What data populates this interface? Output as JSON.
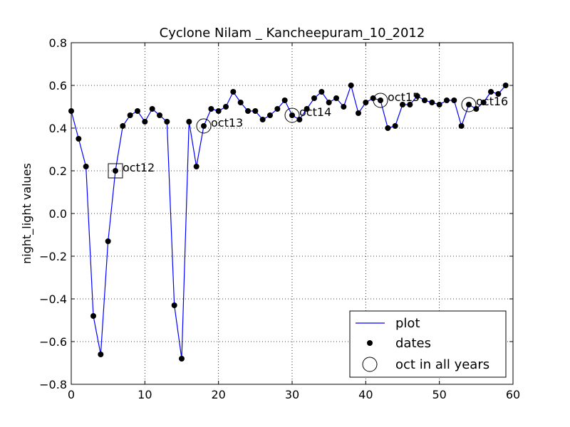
{
  "chart_data": {
    "type": "line",
    "title": "Cyclone Nilam _ Kancheepuram_10_2012",
    "xlabel": "",
    "ylabel": "night_light values",
    "xlim": [
      0,
      60
    ],
    "ylim": [
      -0.8,
      0.8
    ],
    "xticks": [
      0,
      10,
      20,
      30,
      40,
      50,
      60
    ],
    "yticks": [
      -0.8,
      -0.6,
      -0.4,
      -0.2,
      0.0,
      0.2,
      0.4,
      0.6,
      0.8
    ],
    "xtick_labels": [
      "0",
      "10",
      "20",
      "30",
      "40",
      "50",
      "60"
    ],
    "ytick_labels": [
      "−0.8",
      "−0.6",
      "−0.4",
      "−0.2",
      "0.0",
      "0.2",
      "0.4",
      "0.6",
      "0.8"
    ],
    "grid": true,
    "legend_position": "lower-right",
    "series": [
      {
        "name": "plot",
        "style": "line",
        "color": "#0000ff",
        "x": [
          0,
          1,
          2,
          3,
          4,
          5,
          6,
          7,
          8,
          9,
          10,
          11,
          12,
          13,
          14,
          15,
          16,
          17,
          18,
          19,
          20,
          21,
          22,
          23,
          24,
          25,
          26,
          27,
          28,
          29,
          30,
          31,
          32,
          33,
          34,
          35,
          36,
          37,
          38,
          39,
          40,
          41,
          42,
          43,
          44,
          45,
          46,
          47,
          48,
          49,
          50,
          51,
          52,
          53,
          54,
          55,
          56,
          57,
          58,
          59
        ],
        "y": [
          0.48,
          0.35,
          0.22,
          -0.48,
          -0.66,
          -0.13,
          0.2,
          0.41,
          0.46,
          0.48,
          0.43,
          0.49,
          0.46,
          0.43,
          -0.43,
          -0.68,
          0.43,
          0.22,
          0.41,
          0.49,
          0.48,
          0.5,
          0.57,
          0.52,
          0.48,
          0.48,
          0.44,
          0.46,
          0.49,
          0.53,
          0.46,
          0.44,
          0.49,
          0.54,
          0.57,
          0.52,
          0.54,
          0.5,
          0.6,
          0.47,
          0.52,
          0.54,
          0.53,
          0.4,
          0.41,
          0.51,
          0.51,
          0.55,
          0.53,
          0.52,
          0.51,
          0.53,
          0.53,
          0.41,
          0.51,
          0.49,
          0.52,
          0.57,
          0.56,
          0.6
        ]
      },
      {
        "name": "dates",
        "style": "markers",
        "color": "#000000"
      },
      {
        "name": "oct in all years",
        "style": "open-circle-markers",
        "color": "#000000",
        "x": [
          6,
          18,
          30,
          42,
          54
        ],
        "y": [
          0.2,
          0.41,
          0.46,
          0.53,
          0.51
        ]
      }
    ],
    "annotations": [
      {
        "text": "oct12",
        "x": 6,
        "y": 0.2
      },
      {
        "text": "oct13",
        "x": 18,
        "y": 0.41
      },
      {
        "text": "oct14",
        "x": 30,
        "y": 0.46
      },
      {
        "text": "oct15",
        "x": 42,
        "y": 0.53
      },
      {
        "text": "oct16",
        "x": 54,
        "y": 0.51
      }
    ],
    "legend": [
      "plot",
      "dates",
      "oct in all years"
    ]
  }
}
